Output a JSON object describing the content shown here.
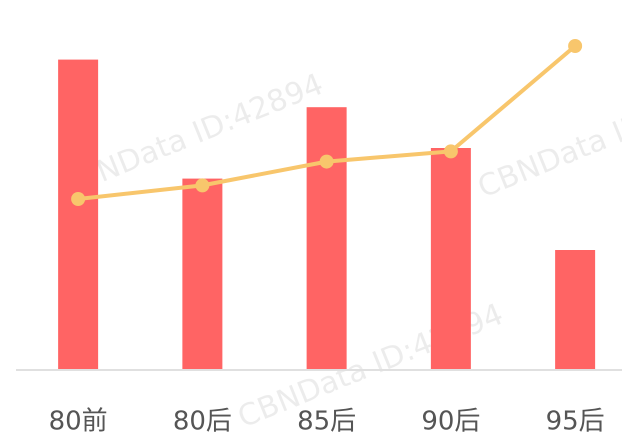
{
  "chart_data": {
    "type": "bar_line",
    "categories": [
      "80前",
      "80后",
      "85后",
      "90后",
      "95后"
    ],
    "series": [
      {
        "type": "bar",
        "color": "#ff6464",
        "values": [
          91,
          56,
          77,
          65,
          35
        ]
      },
      {
        "type": "line",
        "color": "#f8c66c",
        "values": [
          50,
          54,
          61,
          64,
          95
        ]
      }
    ],
    "ylim": [
      0,
      100
    ],
    "watermark": "CBNData ID:42894"
  }
}
